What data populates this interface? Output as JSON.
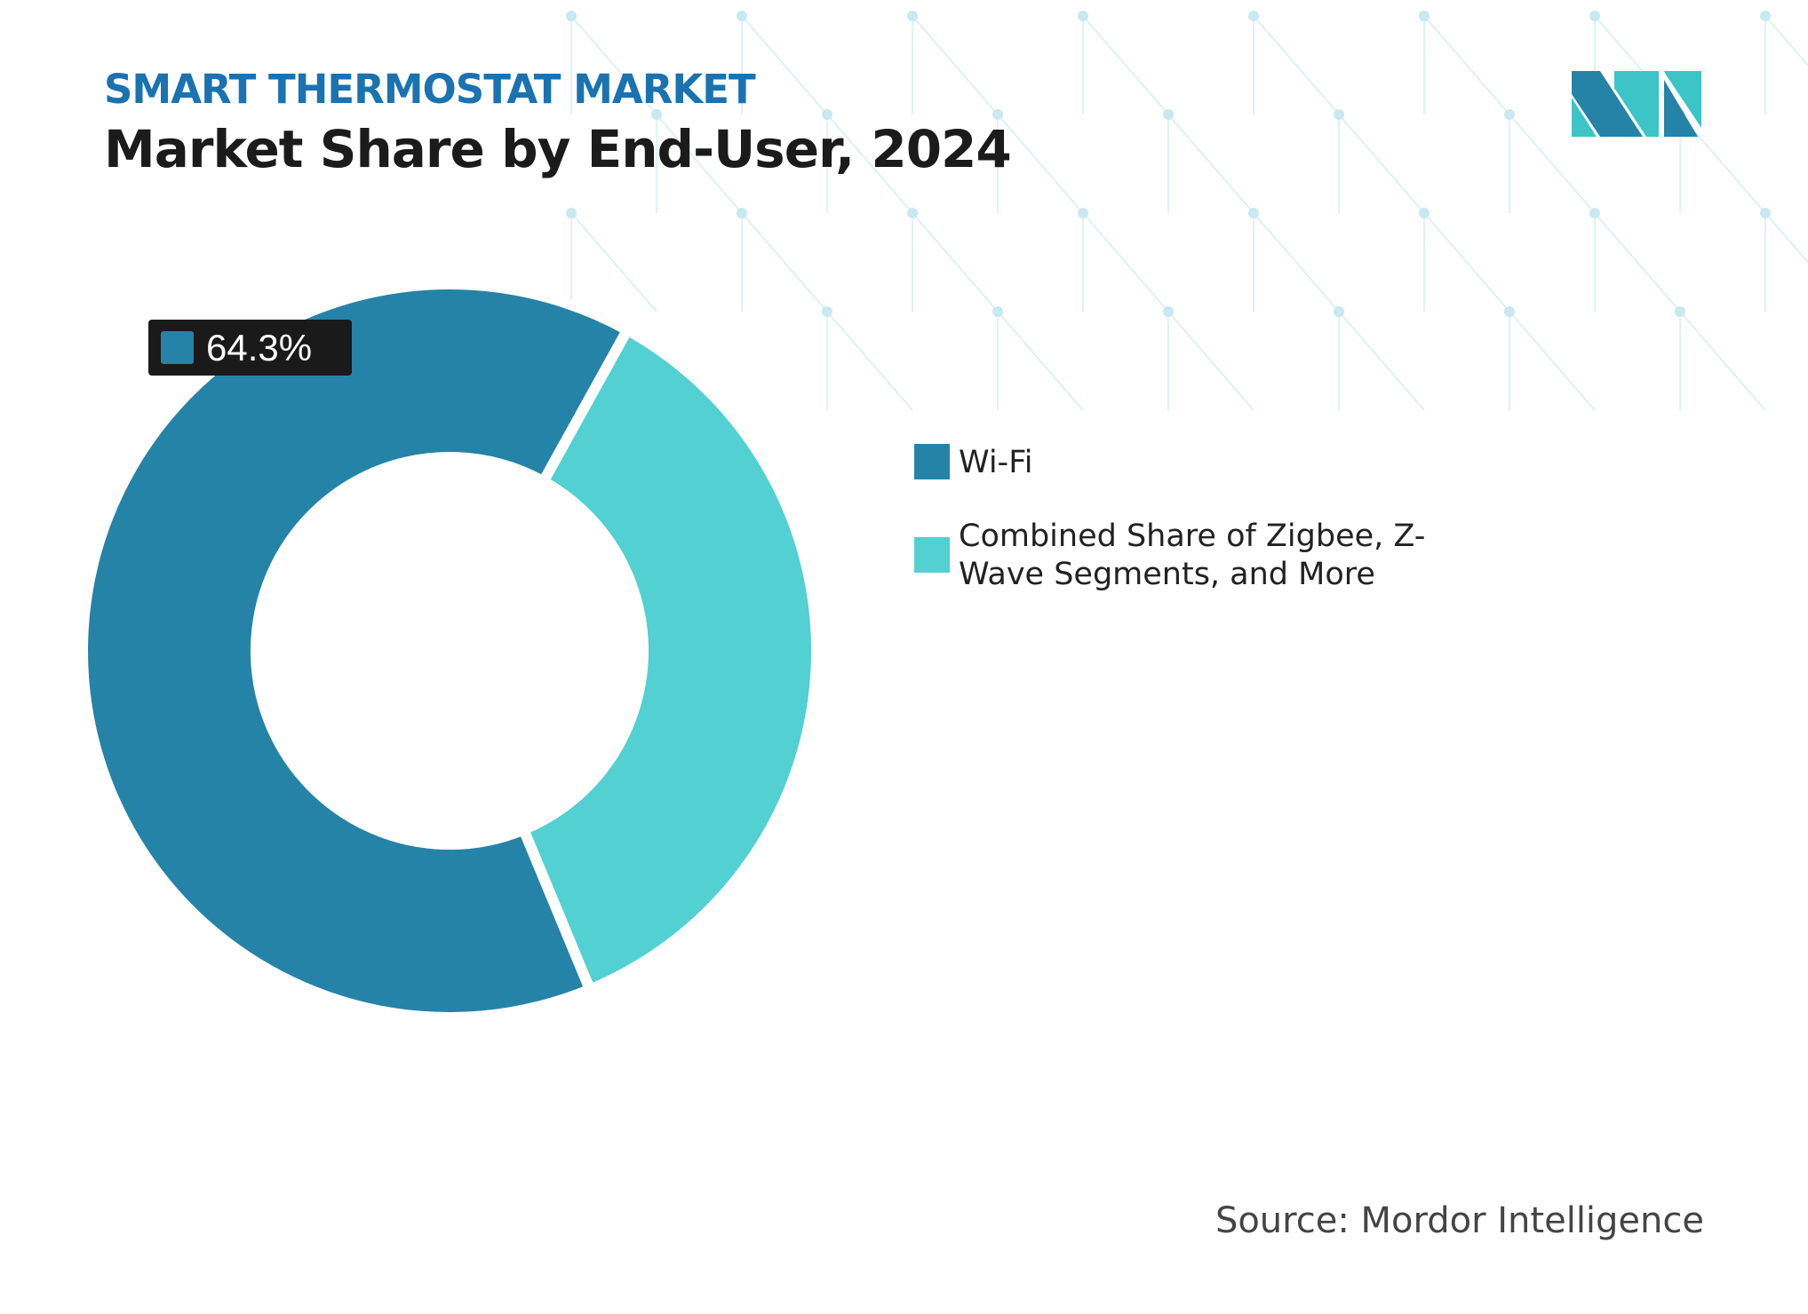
{
  "header": {
    "subtitle": "SMART THERMOSTAT MARKET",
    "title": "Market Share by End-User, 2024"
  },
  "source": "Source: Mordor Intelligence",
  "logo": {
    "text": "MI"
  },
  "chart_data": {
    "type": "pie",
    "donut": true,
    "title": "Market Share by End-User, 2024",
    "categories": [
      "Wi-Fi",
      "Combined Share of Zigbee, Z-Wave Segments, and More"
    ],
    "values": [
      64.3,
      35.7
    ],
    "unit": "%",
    "colors": [
      "#2683a8",
      "#52d0d2"
    ],
    "data_labels": [
      {
        "category": "Wi-Fi",
        "text": "64.3%"
      }
    ],
    "legend_position": "right"
  }
}
